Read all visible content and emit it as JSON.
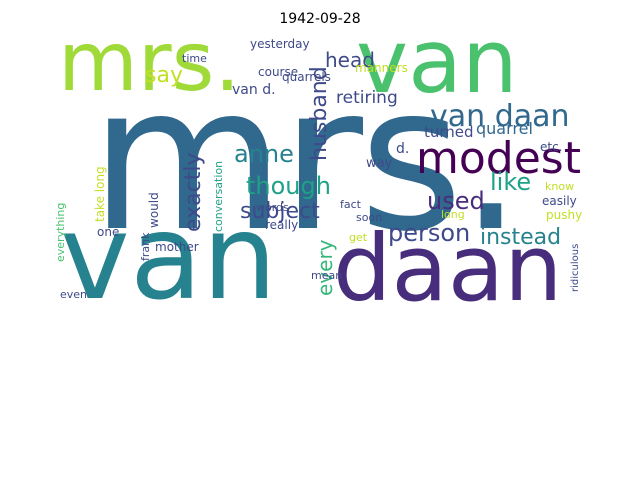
{
  "title": "1942-09-28",
  "palette": {
    "yellow_green": "#a0da39",
    "lime": "#c2df23",
    "teal": "#26828e",
    "sea_green": "#1fa187",
    "steel_blue": "#31688e",
    "navy": "#3e4a89",
    "indigo": "#472d7b",
    "purple": "#440154",
    "green": "#4ac16d",
    "cyan": "#35b779"
  },
  "words": [
    {
      "text": "mrs.",
      "color": "steel_blue"
    },
    {
      "text": "van",
      "color": "teal"
    },
    {
      "text": "daan",
      "color": "indigo"
    },
    {
      "text": "mrs.",
      "color": "yellow_green"
    },
    {
      "text": "van",
      "color": "green"
    },
    {
      "text": "modest",
      "color": "purple"
    },
    {
      "text": "van daan",
      "color": "steel_blue"
    },
    {
      "text": "anne",
      "color": "teal"
    },
    {
      "text": "husband",
      "color": "navy"
    },
    {
      "text": "exactly",
      "color": "navy"
    },
    {
      "text": "though",
      "color": "sea_green"
    },
    {
      "text": "like",
      "color": "sea_green"
    },
    {
      "text": "say",
      "color": "lime"
    },
    {
      "text": "head",
      "color": "navy"
    },
    {
      "text": "used",
      "color": "indigo"
    },
    {
      "text": "subject",
      "color": "navy"
    },
    {
      "text": "person",
      "color": "navy"
    },
    {
      "text": "instead",
      "color": "teal"
    },
    {
      "text": "every",
      "color": "cyan"
    },
    {
      "text": "retiring",
      "color": "navy"
    },
    {
      "text": "quarrel",
      "color": "steel_blue"
    },
    {
      "text": "turned",
      "color": "navy"
    },
    {
      "text": "van d.",
      "color": "navy"
    },
    {
      "text": "d.",
      "color": "navy"
    },
    {
      "text": "course",
      "color": "navy"
    },
    {
      "text": "quarrels",
      "color": "navy"
    },
    {
      "text": "manners",
      "color": "lime"
    },
    {
      "text": "yesterday",
      "color": "navy"
    },
    {
      "text": "time",
      "color": "navy"
    },
    {
      "text": "really",
      "color": "navy"
    },
    {
      "text": "words",
      "color": "navy"
    },
    {
      "text": "fact",
      "color": "navy"
    },
    {
      "text": "soon",
      "color": "navy"
    },
    {
      "text": "way",
      "color": "navy"
    },
    {
      "text": "etc.",
      "color": "navy"
    },
    {
      "text": "know",
      "color": "lime"
    },
    {
      "text": "easily",
      "color": "navy"
    },
    {
      "text": "pushy",
      "color": "lime"
    },
    {
      "text": "long",
      "color": "lime"
    },
    {
      "text": "would",
      "color": "navy"
    },
    {
      "text": "one",
      "color": "navy"
    },
    {
      "text": "mother",
      "color": "navy"
    },
    {
      "text": "frank",
      "color": "navy"
    },
    {
      "text": "take long",
      "color": "lime"
    },
    {
      "text": "conversation",
      "color": "sea_green"
    },
    {
      "text": "everything",
      "color": "green"
    },
    {
      "text": "even",
      "color": "navy"
    },
    {
      "text": "mean",
      "color": "navy"
    },
    {
      "text": "get",
      "color": "lime"
    },
    {
      "text": "ridiculous",
      "color": "navy"
    }
  ]
}
